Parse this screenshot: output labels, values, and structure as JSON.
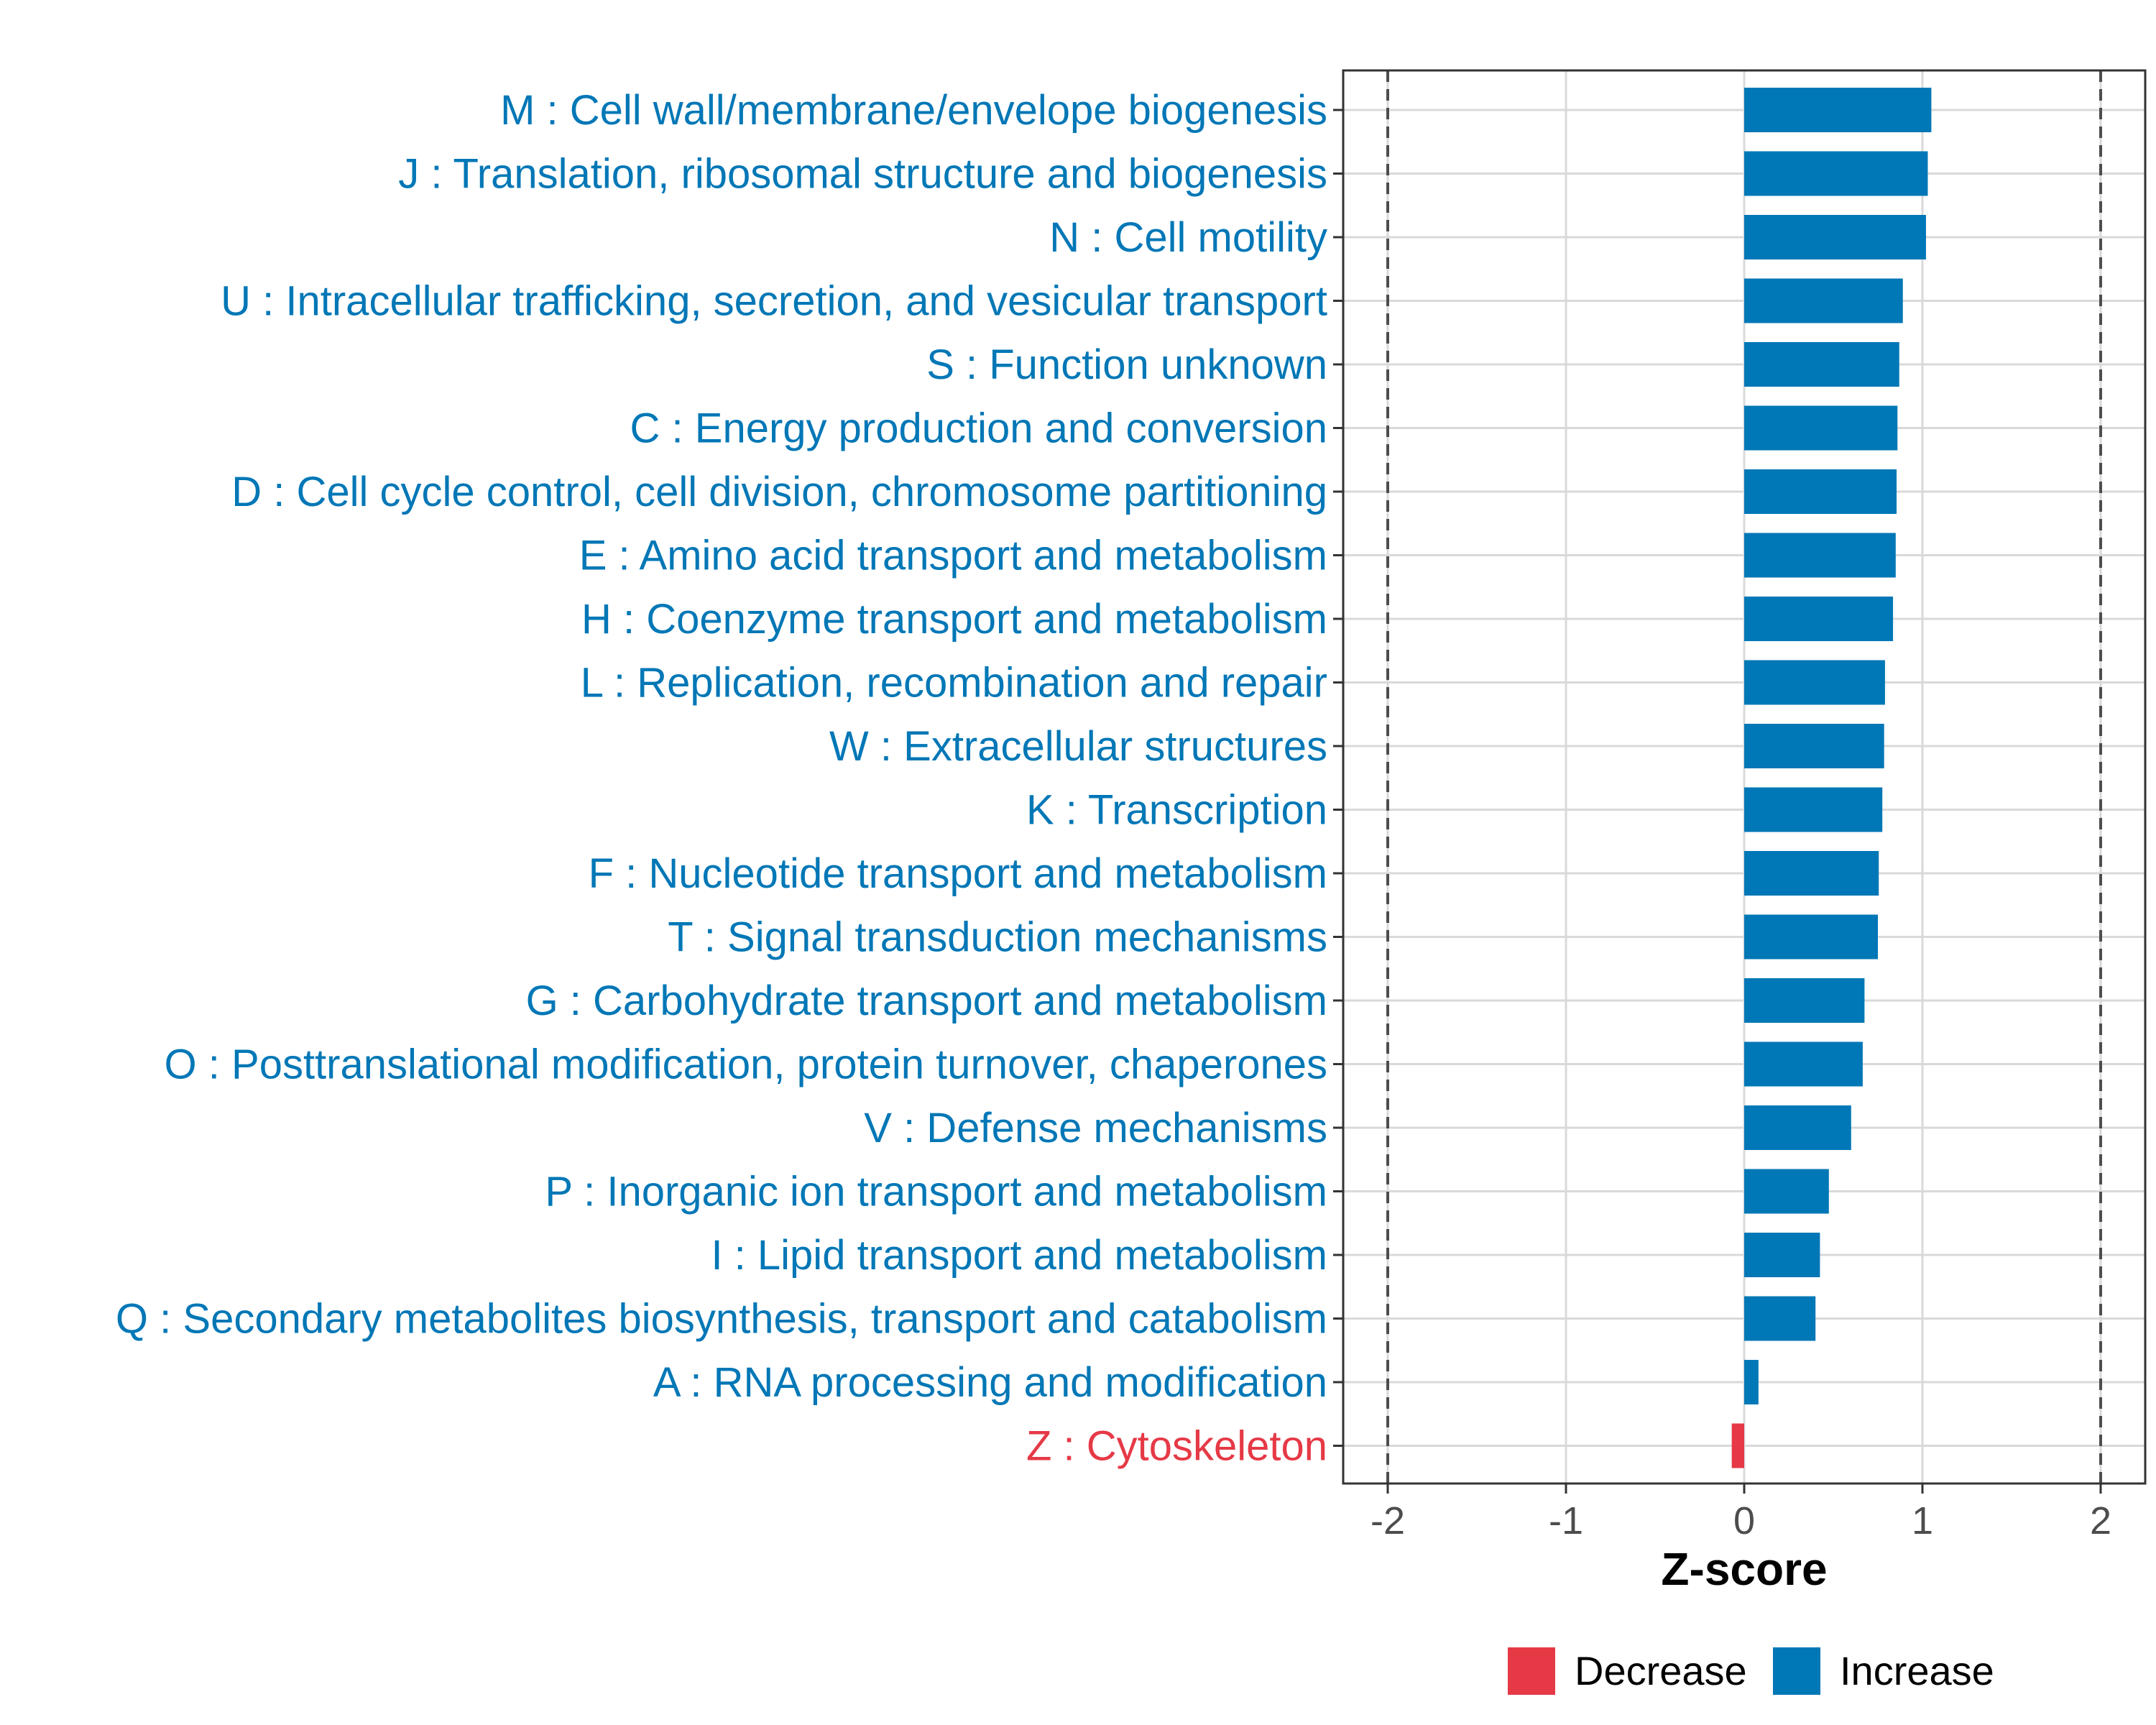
{
  "chart_data": {
    "type": "bar",
    "orientation": "horizontal",
    "categories": [
      "M : Cell wall/membrane/envelope biogenesis",
      "J : Translation, ribosomal structure and biogenesis",
      "N : Cell motility",
      "U : Intracellular trafficking, secretion, and vesicular transport",
      "S : Function unknown",
      "C : Energy production and conversion",
      "D : Cell cycle control, cell division, chromosome partitioning",
      "E : Amino acid transport and metabolism",
      "H : Coenzyme transport and metabolism",
      "L : Replication, recombination and repair",
      "W : Extracellular structures",
      "K : Transcription",
      "F : Nucleotide transport and metabolism",
      "T : Signal transduction mechanisms",
      "G : Carbohydrate transport and metabolism",
      "O : Posttranslational modification, protein turnover, chaperones",
      "V : Defense mechanisms",
      "P : Inorganic ion transport and metabolism",
      "I : Lipid transport and metabolism",
      "Q : Secondary metabolites biosynthesis, transport and catabolism",
      "A : RNA processing and modification",
      "Z : Cytoskeleton"
    ],
    "values": [
      1.05,
      1.03,
      1.02,
      0.89,
      0.87,
      0.86,
      0.855,
      0.85,
      0.835,
      0.79,
      0.785,
      0.775,
      0.755,
      0.75,
      0.675,
      0.665,
      0.6,
      0.475,
      0.425,
      0.4,
      0.08,
      -0.07
    ],
    "direction": [
      "Increase",
      "Increase",
      "Increase",
      "Increase",
      "Increase",
      "Increase",
      "Increase",
      "Increase",
      "Increase",
      "Increase",
      "Increase",
      "Increase",
      "Increase",
      "Increase",
      "Increase",
      "Increase",
      "Increase",
      "Increase",
      "Increase",
      "Increase",
      "Increase",
      "Decrease"
    ],
    "xlabel": "Z-score",
    "ylabel": "",
    "xlim": [
      -2.25,
      2.25
    ],
    "xticks": [
      -2,
      -1,
      0,
      1,
      2
    ],
    "xtick_labels": [
      "-2",
      "-1",
      "0",
      "1",
      "2"
    ],
    "reference_lines": [
      -2,
      2
    ],
    "legend": {
      "position": "bottom",
      "entries": [
        {
          "label": "Decrease",
          "color": "#e63946"
        },
        {
          "label": "Increase",
          "color": "#0077b6"
        }
      ]
    },
    "grid": true
  },
  "colors": {
    "Increase": "#0077b6",
    "Decrease": "#e63946",
    "grid": "#d9d9d9",
    "panel_border": "#333333",
    "reference_line": "#4d4d4d"
  }
}
